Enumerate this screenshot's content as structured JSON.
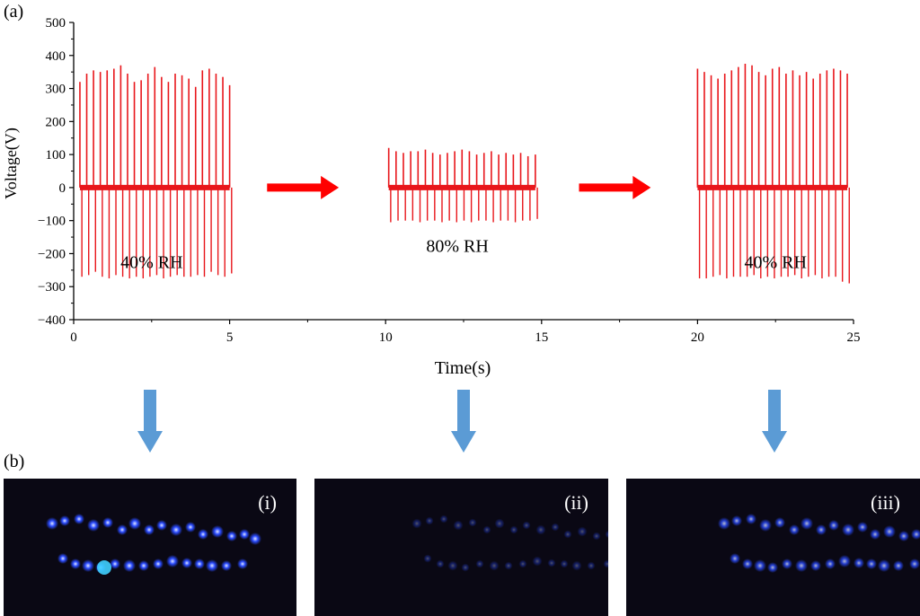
{
  "panels": {
    "a": "(a)",
    "b": "(b)"
  },
  "chart_data": {
    "type": "line",
    "xlabel": "Time(s)",
    "ylabel": "Voltage(V)",
    "xlim": [
      0,
      25
    ],
    "ylim": [
      -400,
      500
    ],
    "xticks": [
      0,
      5,
      10,
      15,
      20,
      25
    ],
    "yticks": [
      -400,
      -300,
      -200,
      -100,
      0,
      100,
      200,
      300,
      400,
      500
    ],
    "line_color": "#e8161b",
    "segments": [
      {
        "label": "40% RH",
        "t_start": 0.2,
        "t_end": 5.0,
        "peaks_pos": [
          320,
          345,
          355,
          350,
          355,
          360,
          370,
          345,
          320,
          325,
          345,
          365,
          335,
          320,
          345,
          340,
          330,
          305,
          355,
          360,
          345,
          335,
          310
        ],
        "peaks_neg": [
          -270,
          -265,
          -255,
          -270,
          -275,
          -265,
          -270,
          -275,
          -270,
          -275,
          -270,
          -265,
          -275,
          -270,
          -265,
          -270,
          -270,
          -265,
          -270,
          -255,
          -265,
          -270,
          -260
        ]
      },
      {
        "label": "80% RH",
        "t_start": 10.1,
        "t_end": 14.8,
        "peaks_pos": [
          120,
          110,
          105,
          110,
          110,
          115,
          105,
          100,
          105,
          110,
          115,
          110,
          100,
          105,
          110,
          100,
          105,
          100,
          105,
          95,
          100
        ],
        "peaks_neg": [
          -105,
          -100,
          -100,
          -100,
          -105,
          -100,
          -100,
          -105,
          -100,
          -105,
          -100,
          -105,
          -100,
          -100,
          -105,
          -100,
          -100,
          -105,
          -100,
          -100,
          -95
        ]
      },
      {
        "label": "40% RH",
        "t_start": 20.0,
        "t_end": 24.8,
        "peaks_pos": [
          360,
          350,
          340,
          330,
          345,
          355,
          365,
          375,
          370,
          350,
          340,
          360,
          365,
          345,
          355,
          340,
          350,
          330,
          345,
          355,
          360,
          355,
          345
        ],
        "peaks_neg": [
          -275,
          -275,
          -270,
          -265,
          -275,
          -270,
          -270,
          -270,
          -265,
          -275,
          -270,
          -275,
          -270,
          -270,
          -265,
          -275,
          -270,
          -265,
          -275,
          -270,
          -270,
          -285,
          -290
        ]
      }
    ],
    "transition_arrow_color": "#ff0000"
  },
  "photos": [
    {
      "tag": "(i)",
      "brightness": 1.0
    },
    {
      "tag": "(ii)",
      "brightness": 0.35
    },
    {
      "tag": "(iii)",
      "brightness": 0.8
    }
  ],
  "down_arrow_color": "#5b9bd5",
  "led_color": "#2a4bff"
}
